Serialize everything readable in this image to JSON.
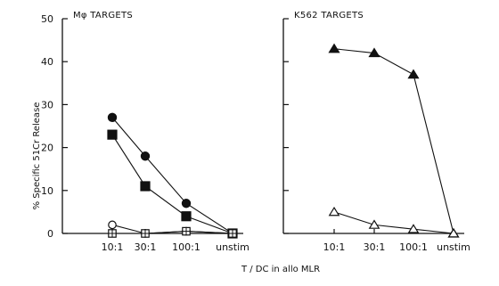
{
  "chart_data": [
    {
      "type": "line",
      "title": "Mφ TARGETS",
      "categories": [
        "10:1",
        "30:1",
        "100:1",
        "unstim"
      ],
      "ylabel": "% Specific 51Cr Release",
      "ylim": [
        0,
        50
      ],
      "yticks": [
        "0",
        "10",
        "20",
        "30",
        "40",
        "50"
      ],
      "grid": false,
      "series": [
        {
          "marker": "filled-circle",
          "values": [
            27,
            18,
            7,
            0
          ]
        },
        {
          "marker": "filled-square",
          "values": [
            23,
            11,
            4,
            0
          ]
        },
        {
          "marker": "open-circle",
          "values": [
            2,
            0,
            0.5,
            0
          ]
        },
        {
          "marker": "open-square",
          "values": [
            0,
            0,
            0.5,
            0
          ]
        }
      ]
    },
    {
      "type": "line",
      "title": "K562 TARGETS",
      "categories": [
        "10:1",
        "30:1",
        "100:1",
        "unstim"
      ],
      "ylim": [
        0,
        50
      ],
      "grid": false,
      "series": [
        {
          "marker": "filled-triangle",
          "values": [
            43,
            42,
            37,
            0
          ]
        },
        {
          "marker": "open-triangle",
          "values": [
            5,
            2,
            1,
            0
          ]
        }
      ]
    }
  ],
  "xlabel": "T / DC  in allo MLR"
}
